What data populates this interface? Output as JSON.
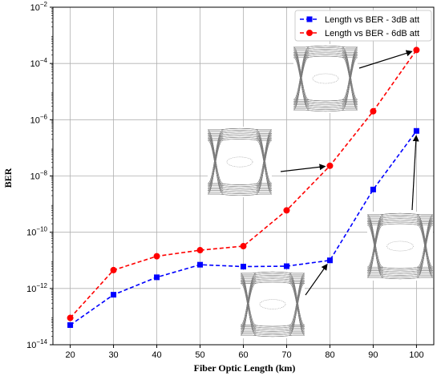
{
  "chart_data": {
    "type": "line",
    "title": "",
    "xlabel": "Fiber Optic Length (km)",
    "ylabel": "BER",
    "x": [
      20,
      30,
      40,
      50,
      60,
      70,
      80,
      90,
      100
    ],
    "xlim": [
      16,
      104
    ],
    "ylim_exponents": [
      -14,
      -2
    ],
    "yscale": "log",
    "grid": true,
    "legend_position": "top-right",
    "series": [
      {
        "name": "Length vs BER - 3dB att",
        "color": "#0000ff",
        "marker": "square",
        "linestyle": "dashed",
        "values": [
          5e-14,
          6e-13,
          2.5e-12,
          7e-12,
          6e-12,
          6.2e-12,
          1e-11,
          3.3e-09,
          4e-07
        ]
      },
      {
        "name": "Length vs BER - 6dB att",
        "color": "#ff0000",
        "marker": "circle",
        "linestyle": "dashed",
        "values": [
          9e-14,
          4.5e-12,
          1.4e-11,
          2.3e-11,
          3.2e-11,
          6e-10,
          2.3e-08,
          2e-06,
          0.0003
        ]
      }
    ],
    "annotations": [
      {
        "name": "eye-diagram-80km-3dB",
        "description_icon": "eye-diagram",
        "points_to_series": 0,
        "points_to_x": 80
      },
      {
        "name": "eye-diagram-80km-6dB",
        "description_icon": "eye-diagram",
        "points_to_series": 1,
        "points_to_x": 80
      },
      {
        "name": "eye-diagram-100km-6dB",
        "description_icon": "eye-diagram",
        "points_to_series": 1,
        "points_to_x": 100
      },
      {
        "name": "eye-diagram-100km-3dB",
        "description_icon": "eye-diagram",
        "points_to_series": 0,
        "points_to_x": 100
      }
    ]
  }
}
